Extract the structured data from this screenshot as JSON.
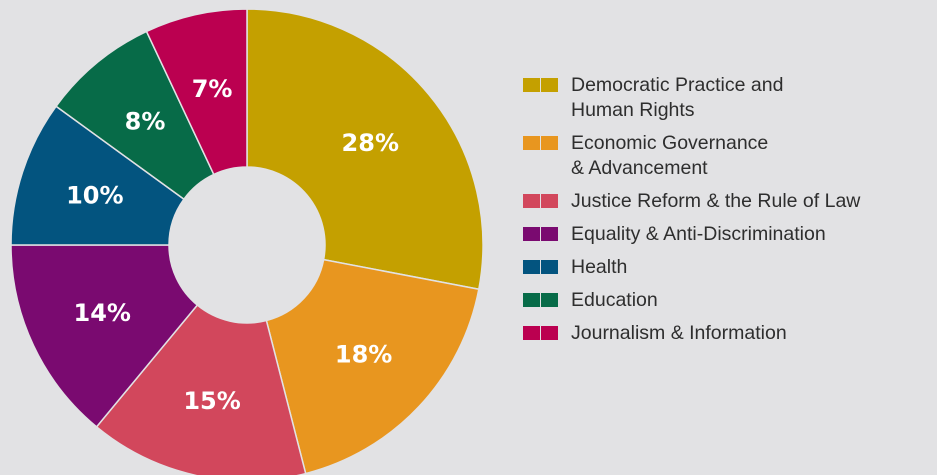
{
  "chart_data": {
    "type": "pie",
    "donut": true,
    "legend_position": "right",
    "slices": [
      {
        "label": "Democratic Practice and\nHuman Rights",
        "value": 28,
        "display": "28%",
        "color": "#c4a000"
      },
      {
        "label": "Economic Governance\n& Advancement",
        "value": 18,
        "display": "18%",
        "color": "#e8961f"
      },
      {
        "label": "Justice Reform & the Rule of Law",
        "value": 15,
        "display": "15%",
        "color": "#d2475c"
      },
      {
        "label": "Equality & Anti-Discrimination",
        "value": 14,
        "display": "14%",
        "color": "#7a0a70"
      },
      {
        "label": "Health",
        "value": 10,
        "display": "10%",
        "color": "#03547f"
      },
      {
        "label": "Education",
        "value": 8,
        "display": "8%",
        "color": "#076b48"
      },
      {
        "label": "Journalism & Information",
        "value": 7,
        "display": "7%",
        "color": "#bb0050"
      }
    ]
  }
}
